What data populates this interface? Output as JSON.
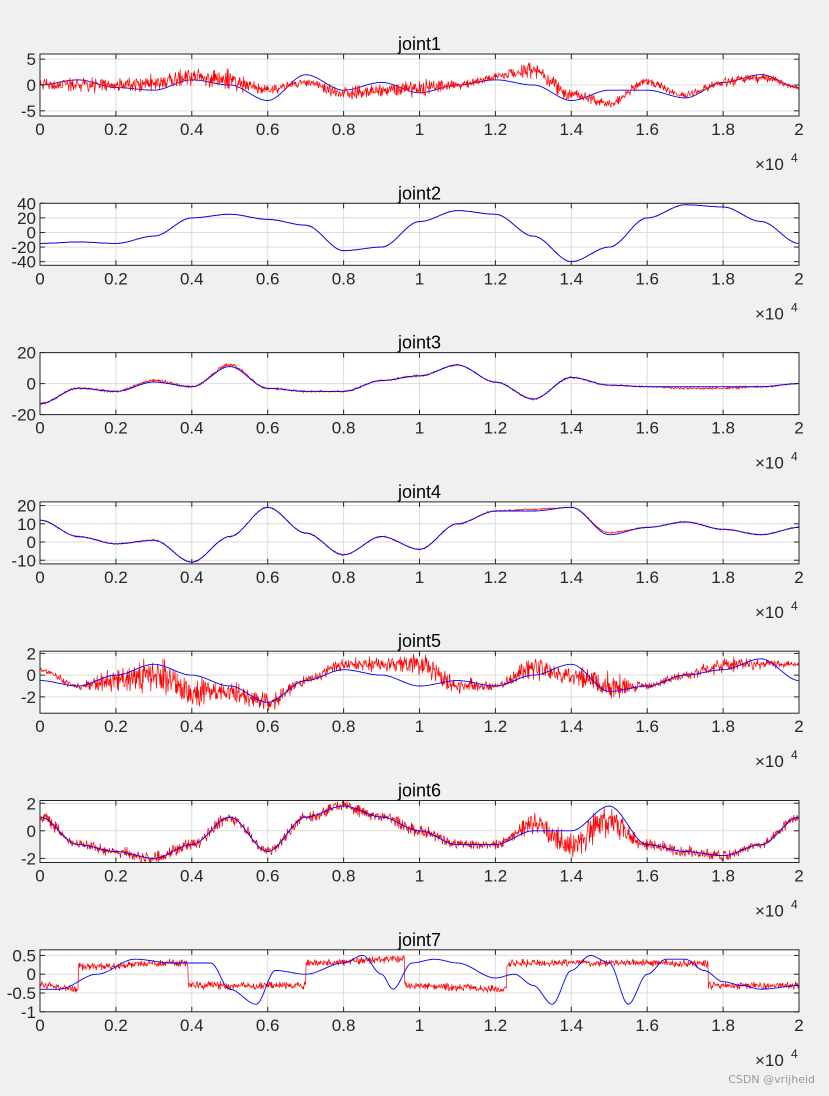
{
  "figure": {
    "background": "#f0f0f0",
    "watermark": "CSDN @vrijheid"
  },
  "colors": {
    "measured": "#ff0000",
    "reference": "#0000ff",
    "grid": "#dcdcdc",
    "axes": "#262626"
  },
  "chart_data": [
    {
      "type": "line",
      "title": "joint1",
      "xlabel": "",
      "ylabel": "",
      "xlim": [
        0,
        20000
      ],
      "ylim": [
        -6,
        6
      ],
      "yticks": [
        -5,
        0,
        5
      ],
      "xticks": [
        0,
        2000,
        4000,
        6000,
        8000,
        10000,
        12000,
        14000,
        16000,
        18000,
        20000
      ],
      "xtick_labels": [
        "0",
        "0.2",
        "0.4",
        "0.6",
        "0.8",
        "1",
        "1.2",
        "1.4",
        "1.6",
        "1.8",
        "2"
      ],
      "x_exponent_label": "×10",
      "x_exponent_power": "4",
      "grid": true,
      "series": [
        {
          "role": "reference",
          "color": "#0000ff",
          "x": [
            0,
            1000,
            2000,
            3000,
            4000,
            5000,
            6000,
            7000,
            8000,
            9000,
            10000,
            11000,
            12000,
            13000,
            14000,
            15000,
            16000,
            17000,
            18000,
            19000,
            20000
          ],
          "y": [
            0,
            1,
            -0.5,
            -1,
            1,
            0,
            -3,
            2,
            -1,
            0.5,
            -1.5,
            0,
            1,
            0,
            -3,
            -1,
            -1,
            -2.5,
            0.5,
            2,
            -0.5
          ],
          "noise": 0
        },
        {
          "role": "measured",
          "color": "#ff0000",
          "x": [
            0,
            1000,
            2000,
            3000,
            4000,
            5000,
            6000,
            7000,
            8000,
            9000,
            10000,
            11000,
            12000,
            13000,
            14000,
            15000,
            16000,
            17000,
            18000,
            19000,
            20000
          ],
          "y": [
            0,
            0,
            0,
            0.5,
            1.5,
            1,
            -1,
            0.5,
            -1.5,
            -1,
            -0.5,
            0,
            1.5,
            3,
            -2,
            -3.5,
            0.5,
            -2,
            0.5,
            1.5,
            -0.5
          ],
          "noise": [
            1.5,
            1.8,
            1.5,
            2,
            2,
            2.5,
            1.2,
            1,
            1.5,
            1.5,
            2,
            1,
            1,
            2,
            1.5,
            1,
            1,
            0.8,
            1.2,
            1.2,
            0.5
          ]
        }
      ]
    },
    {
      "type": "line",
      "title": "joint2",
      "xlabel": "",
      "ylabel": "",
      "xlim": [
        0,
        20000
      ],
      "ylim": [
        -45,
        40
      ],
      "yticks": [
        -40,
        -20,
        0,
        20,
        40
      ],
      "xticks": [
        0,
        2000,
        4000,
        6000,
        8000,
        10000,
        12000,
        14000,
        16000,
        18000,
        20000
      ],
      "xtick_labels": [
        "0",
        "0.2",
        "0.4",
        "0.6",
        "0.8",
        "1",
        "1.2",
        "1.4",
        "1.6",
        "1.8",
        "2"
      ],
      "x_exponent_label": "×10",
      "x_exponent_power": "4",
      "grid": true,
      "series": [
        {
          "role": "measured",
          "color": "#ff0000",
          "x": [
            0,
            1000,
            2000,
            3000,
            4000,
            5000,
            6000,
            7000,
            8000,
            9000,
            10000,
            11000,
            12000,
            13000,
            14000,
            15000,
            16000,
            17000,
            18000,
            19000,
            20000
          ],
          "y": [
            -15,
            -13,
            -15,
            -5,
            20,
            25,
            18,
            10,
            -25,
            -20,
            15,
            30,
            25,
            -5,
            -40,
            -20,
            20,
            38,
            35,
            15,
            -15
          ],
          "noise": 0.6
        },
        {
          "role": "reference",
          "color": "#0000ff",
          "x": [
            0,
            1000,
            2000,
            3000,
            4000,
            5000,
            6000,
            7000,
            8000,
            9000,
            10000,
            11000,
            12000,
            13000,
            14000,
            15000,
            16000,
            17000,
            18000,
            19000,
            20000
          ],
          "y": [
            -15,
            -13,
            -15,
            -5,
            20,
            25,
            18,
            10,
            -25,
            -20,
            15,
            30,
            25,
            -5,
            -40,
            -20,
            20,
            38,
            35,
            15,
            -15
          ],
          "noise": 0
        }
      ]
    },
    {
      "type": "line",
      "title": "joint3",
      "xlabel": "",
      "ylabel": "",
      "xlim": [
        0,
        20000
      ],
      "ylim": [
        -20,
        20
      ],
      "yticks": [
        -20,
        0,
        20
      ],
      "xticks": [
        0,
        2000,
        4000,
        6000,
        8000,
        10000,
        12000,
        14000,
        16000,
        18000,
        20000
      ],
      "xtick_labels": [
        "0",
        "0.2",
        "0.4",
        "0.6",
        "0.8",
        "1",
        "1.2",
        "1.4",
        "1.6",
        "1.8",
        "2"
      ],
      "x_exponent_label": "×10",
      "x_exponent_power": "4",
      "grid": true,
      "series": [
        {
          "role": "measured",
          "color": "#ff0000",
          "x": [
            0,
            1000,
            2000,
            3000,
            4000,
            5000,
            6000,
            7000,
            8000,
            9000,
            10000,
            11000,
            12000,
            13000,
            14000,
            15000,
            16000,
            17000,
            18000,
            19000,
            20000
          ],
          "y": [
            -13,
            -3,
            -5,
            2,
            -2,
            12,
            -3,
            -5,
            -5,
            2,
            5,
            12,
            1,
            -10,
            4,
            -1,
            -2,
            -3,
            -3,
            -2,
            0
          ],
          "noise": [
            0.8,
            0.8,
            1,
            1.2,
            0.8,
            1.5,
            0.8,
            0.8,
            0.8,
            0.8,
            0.8,
            0.6,
            0.6,
            0.8,
            1,
            0.6,
            0.6,
            0.8,
            1,
            0.8,
            0.5
          ]
        },
        {
          "role": "reference",
          "color": "#0000ff",
          "x": [
            0,
            1000,
            2000,
            3000,
            4000,
            5000,
            6000,
            7000,
            8000,
            9000,
            10000,
            11000,
            12000,
            13000,
            14000,
            15000,
            16000,
            17000,
            18000,
            19000,
            20000
          ],
          "y": [
            -13,
            -3,
            -5,
            1,
            -2,
            11,
            -3,
            -5,
            -5,
            2,
            5,
            12,
            1,
            -10,
            4,
            -1,
            -2,
            -2,
            -2,
            -2,
            0
          ],
          "noise": 0
        }
      ]
    },
    {
      "type": "line",
      "title": "joint4",
      "xlabel": "",
      "ylabel": "",
      "xlim": [
        0,
        20000
      ],
      "ylim": [
        -12,
        22
      ],
      "yticks": [
        -10,
        0,
        10,
        20
      ],
      "xticks": [
        0,
        2000,
        4000,
        6000,
        8000,
        10000,
        12000,
        14000,
        16000,
        18000,
        20000
      ],
      "xtick_labels": [
        "0",
        "0.2",
        "0.4",
        "0.6",
        "0.8",
        "1",
        "1.2",
        "1.4",
        "1.6",
        "1.8",
        "2"
      ],
      "x_exponent_label": "×10",
      "x_exponent_power": "4",
      "grid": true,
      "series": [
        {
          "role": "measured",
          "color": "#ff0000",
          "x": [
            0,
            1000,
            2000,
            3000,
            4000,
            5000,
            6000,
            7000,
            8000,
            9000,
            10000,
            11000,
            12000,
            13000,
            14000,
            15000,
            16000,
            17000,
            18000,
            19000,
            20000
          ],
          "y": [
            12,
            3,
            -1,
            1,
            -11,
            3,
            19,
            5,
            -7,
            3,
            -4,
            10,
            17,
            18,
            19,
            5,
            8,
            11,
            7,
            4,
            8
          ],
          "noise": 0.5
        },
        {
          "role": "reference",
          "color": "#0000ff",
          "x": [
            0,
            1000,
            2000,
            3000,
            4000,
            5000,
            6000,
            7000,
            8000,
            9000,
            10000,
            11000,
            12000,
            13000,
            14000,
            15000,
            16000,
            17000,
            18000,
            19000,
            20000
          ],
          "y": [
            12,
            3,
            -1,
            1,
            -11,
            3,
            19,
            5,
            -7,
            3,
            -4,
            10,
            17,
            17,
            19,
            4,
            8,
            11,
            7,
            4,
            8
          ],
          "noise": 0
        }
      ]
    },
    {
      "type": "line",
      "title": "joint5",
      "xlabel": "",
      "ylabel": "",
      "xlim": [
        0,
        20000
      ],
      "ylim": [
        -3.5,
        2.2
      ],
      "yticks": [
        -2,
        0,
        2
      ],
      "xticks": [
        0,
        2000,
        4000,
        6000,
        8000,
        10000,
        12000,
        14000,
        16000,
        18000,
        20000
      ],
      "xtick_labels": [
        "0",
        "0.2",
        "0.4",
        "0.6",
        "0.8",
        "1",
        "1.2",
        "1.4",
        "1.6",
        "1.8",
        "2"
      ],
      "x_exponent_label": "×10",
      "x_exponent_power": "4",
      "grid": true,
      "series": [
        {
          "role": "measured",
          "color": "#ff0000",
          "x": [
            0,
            1000,
            2000,
            3000,
            4000,
            5000,
            6000,
            7000,
            8000,
            9000,
            10000,
            11000,
            12000,
            13000,
            14000,
            15000,
            16000,
            17000,
            18000,
            19000,
            20000
          ],
          "y": [
            0.5,
            -1,
            -0.5,
            0,
            -1.5,
            -1.5,
            -2.5,
            -0.5,
            1,
            1,
            1,
            -1,
            -1,
            0.5,
            0,
            -1,
            -1,
            0,
            1,
            1,
            1
          ],
          "noise": [
            0.3,
            0.4,
            1.2,
            2,
            1.5,
            1.2,
            1,
            0.5,
            0.8,
            0.8,
            1.2,
            1,
            0.4,
            1.2,
            1.2,
            1.5,
            0.4,
            0.5,
            1,
            0.6,
            0.3
          ]
        },
        {
          "role": "reference",
          "color": "#0000ff",
          "x": [
            0,
            1000,
            2000,
            3000,
            4000,
            5000,
            6000,
            7000,
            8000,
            9000,
            10000,
            11000,
            12000,
            13000,
            14000,
            15000,
            16000,
            17000,
            18000,
            19000,
            20000
          ],
          "y": [
            -0.5,
            -1,
            0,
            1,
            0,
            -1,
            -2.5,
            -0.5,
            0.5,
            0,
            -1,
            -0.5,
            -1,
            0,
            1,
            -1.5,
            -1,
            0,
            0.5,
            1.5,
            -0.5
          ],
          "noise": 0
        }
      ]
    },
    {
      "type": "line",
      "title": "joint6",
      "xlabel": "",
      "ylabel": "",
      "xlim": [
        0,
        20000
      ],
      "ylim": [
        -2.3,
        2.2
      ],
      "yticks": [
        -2,
        0,
        2
      ],
      "xticks": [
        0,
        2000,
        4000,
        6000,
        8000,
        10000,
        12000,
        14000,
        16000,
        18000,
        20000
      ],
      "xtick_labels": [
        "0",
        "0.2",
        "0.4",
        "0.6",
        "0.8",
        "1",
        "1.2",
        "1.4",
        "1.6",
        "1.8",
        "2"
      ],
      "x_exponent_label": "×10",
      "x_exponent_power": "4",
      "grid": true,
      "series": [
        {
          "role": "measured",
          "color": "#ff0000",
          "x": [
            0,
            1000,
            2000,
            3000,
            4000,
            5000,
            6000,
            7000,
            8000,
            9000,
            10000,
            11000,
            12000,
            13000,
            14000,
            15000,
            16000,
            17000,
            18000,
            19000,
            20000
          ],
          "y": [
            1,
            -1,
            -1.5,
            -2,
            -1,
            1,
            -1.5,
            1,
            1.8,
            1,
            0,
            -1,
            -1,
            0.5,
            -1,
            0.8,
            -1,
            -1.5,
            -1.8,
            -1,
            1
          ],
          "noise": [
            0.6,
            0.4,
            0.5,
            0.6,
            0.5,
            0.6,
            0.4,
            0.5,
            0.6,
            0.5,
            0.5,
            0.4,
            0.4,
            0.9,
            1.2,
            1.5,
            0.5,
            0.5,
            0.5,
            0.4,
            0.4
          ]
        },
        {
          "role": "reference",
          "color": "#0000ff",
          "x": [
            0,
            1000,
            2000,
            3000,
            4000,
            5000,
            6000,
            7000,
            8000,
            9000,
            10000,
            11000,
            12000,
            13000,
            14000,
            15000,
            16000,
            17000,
            18000,
            19000,
            20000
          ],
          "y": [
            1,
            -1,
            -1.5,
            -2,
            -1,
            1,
            -1.5,
            1,
            1.8,
            1,
            0,
            -1,
            -1,
            0,
            0,
            1.8,
            -1,
            -1.5,
            -1.8,
            -1,
            1
          ],
          "noise": 0
        }
      ]
    },
    {
      "type": "line",
      "title": "joint7",
      "xlabel": "",
      "ylabel": "",
      "xlim": [
        0,
        20000
      ],
      "ylim": [
        -1,
        0.65
      ],
      "yticks": [
        -1,
        -0.5,
        0,
        0.5
      ],
      "xticks": [
        0,
        2000,
        4000,
        6000,
        8000,
        10000,
        12000,
        14000,
        16000,
        18000,
        20000
      ],
      "xtick_labels": [
        "0",
        "0.2",
        "0.4",
        "0.6",
        "0.8",
        "1",
        "1.2",
        "1.4",
        "1.6",
        "1.8",
        "2"
      ],
      "x_exponent_label": "×10",
      "x_exponent_power": "4",
      "grid": true,
      "series": [
        {
          "role": "measured",
          "color": "#ff0000",
          "x": [
            0,
            1000,
            1000,
            3900,
            3900,
            7000,
            7000,
            9600,
            9600,
            12300,
            12300,
            17600,
            17600,
            20000
          ],
          "y": [
            -0.3,
            -0.4,
            0.2,
            0.3,
            -0.3,
            -0.3,
            0.3,
            0.4,
            -0.3,
            -0.4,
            0.3,
            0.3,
            -0.3,
            -0.3
          ],
          "noise": 0.12
        },
        {
          "role": "reference",
          "color": "#0000ff",
          "x": [
            0,
            500,
            1500,
            2500,
            3500,
            4500,
            5000,
            5700,
            6200,
            7000,
            8000,
            8500,
            9000,
            9300,
            9800,
            10400,
            11000,
            12000,
            12500,
            13000,
            13500,
            14000,
            14500,
            15000,
            15500,
            16000,
            16500,
            17000,
            17500,
            18000,
            18500,
            19000,
            20000
          ],
          "y": [
            -0.4,
            -0.4,
            0.0,
            0.4,
            0.3,
            0.3,
            -0.4,
            -0.8,
            0.1,
            0.0,
            0.3,
            0.5,
            0.0,
            -0.4,
            0.3,
            0.4,
            0.3,
            -0.1,
            0.0,
            -0.3,
            -0.8,
            0.1,
            0.5,
            0.3,
            -0.8,
            0.0,
            0.4,
            0.4,
            0.1,
            -0.2,
            -0.3,
            -0.4,
            -0.3
          ],
          "noise": 0
        }
      ]
    }
  ]
}
